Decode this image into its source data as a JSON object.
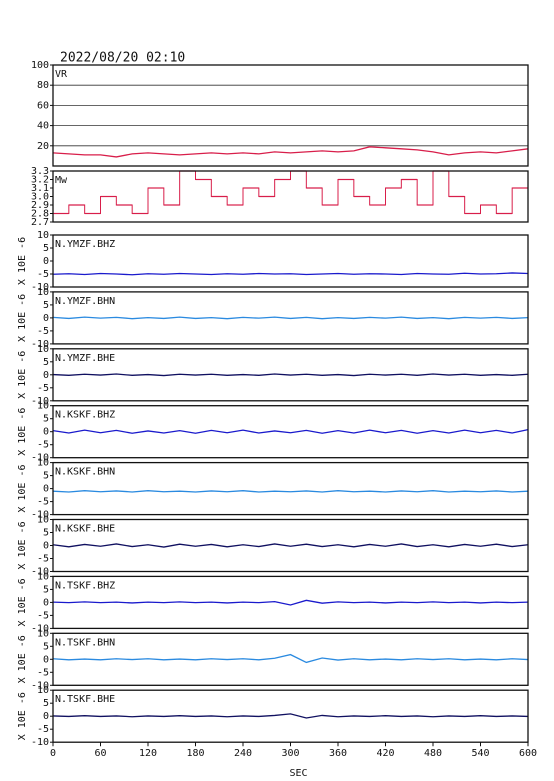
{
  "title": "2022/08/20 02:10",
  "chart_data": [
    {
      "type": "line",
      "title": "VR",
      "xlim": [
        0,
        600
      ],
      "ylim": [
        0,
        100
      ],
      "yticks": [
        20,
        40,
        60,
        80,
        100
      ],
      "grid": true,
      "x": [
        0,
        20,
        40,
        60,
        80,
        100,
        120,
        140,
        160,
        180,
        200,
        220,
        240,
        260,
        280,
        300,
        320,
        340,
        360,
        380,
        400,
        420,
        440,
        460,
        480,
        500,
        520,
        540,
        560,
        580,
        600
      ],
      "series": [
        {
          "color": "#d81e4a",
          "values": [
            13,
            12,
            11,
            11,
            9,
            12,
            13,
            12,
            11,
            12,
            13,
            12,
            13,
            12,
            14,
            13,
            14,
            15,
            14,
            15,
            19,
            18,
            17,
            16,
            14,
            11,
            13,
            14,
            13,
            15,
            17
          ]
        }
      ]
    },
    {
      "type": "step",
      "title": "Mw",
      "xlim": [
        0,
        600
      ],
      "ylim": [
        2.7,
        3.3
      ],
      "yticks": [
        2.7,
        2.8,
        2.9,
        {
          "value": 3,
          "label": "3.0"
        },
        3.1,
        3.2,
        3.3
      ],
      "x": [
        0,
        20,
        40,
        60,
        80,
        100,
        120,
        140,
        160,
        180,
        200,
        220,
        240,
        260,
        280,
        300,
        320,
        340,
        360,
        380,
        400,
        420,
        440,
        460,
        480,
        500,
        520,
        540,
        560,
        580
      ],
      "series": [
        {
          "color": "#d81e4a",
          "values": [
            2.8,
            2.9,
            2.8,
            3.0,
            2.9,
            2.8,
            3.1,
            2.9,
            3.3,
            3.2,
            3.0,
            2.9,
            3.1,
            3.0,
            3.2,
            3.3,
            3.1,
            2.9,
            3.2,
            3.0,
            2.9,
            3.1,
            3.2,
            2.9,
            3.3,
            3.0,
            2.8,
            2.9,
            2.8,
            3.1
          ]
        }
      ]
    },
    {
      "type": "line",
      "title": "N.YMZF.BHZ",
      "ylabel": "X 10E -6",
      "xlim": [
        0,
        600
      ],
      "ylim": [
        -10,
        10
      ],
      "yticks": [
        -10,
        -5,
        0,
        5,
        10
      ],
      "x": [
        0,
        20,
        40,
        60,
        80,
        100,
        120,
        140,
        160,
        180,
        200,
        220,
        240,
        260,
        280,
        300,
        320,
        340,
        360,
        380,
        400,
        420,
        440,
        460,
        480,
        500,
        520,
        540,
        560,
        580,
        600
      ],
      "series": [
        {
          "color": "#1a1acc",
          "values": [
            -5.1,
            -4.9,
            -5.2,
            -4.8,
            -5.0,
            -5.3,
            -4.9,
            -5.1,
            -4.8,
            -5.0,
            -5.2,
            -4.9,
            -5.1,
            -4.8,
            -5.0,
            -4.9,
            -5.2,
            -5.0,
            -4.8,
            -5.1,
            -4.9,
            -5.0,
            -5.2,
            -4.8,
            -5.0,
            -5.1,
            -4.7,
            -5.0,
            -4.9,
            -4.6,
            -4.8
          ]
        }
      ]
    },
    {
      "type": "line",
      "title": "N.YMZF.BHN",
      "ylabel": "X 10E -6",
      "xlim": [
        0,
        600
      ],
      "ylim": [
        -10,
        10
      ],
      "yticks": [
        -10,
        -5,
        0,
        5,
        10
      ],
      "x": [
        0,
        20,
        40,
        60,
        80,
        100,
        120,
        140,
        160,
        180,
        200,
        220,
        240,
        260,
        280,
        300,
        320,
        340,
        360,
        380,
        400,
        420,
        440,
        460,
        480,
        500,
        520,
        540,
        560,
        580,
        600
      ],
      "series": [
        {
          "color": "#2a8ae0",
          "values": [
            0.2,
            -0.2,
            0.3,
            -0.1,
            0.2,
            -0.3,
            0.1,
            -0.2,
            0.3,
            -0.2,
            0.1,
            -0.3,
            0.2,
            -0.1,
            0.3,
            -0.2,
            0.2,
            -0.3,
            0.1,
            -0.2,
            0.2,
            -0.1,
            0.3,
            -0.2,
            0.1,
            -0.3,
            0.2,
            -0.1,
            0.2,
            -0.2,
            0.1
          ]
        }
      ]
    },
    {
      "type": "line",
      "title": "N.YMZF.BHE",
      "ylabel": "X 10E -6",
      "xlim": [
        0,
        600
      ],
      "ylim": [
        -10,
        10
      ],
      "yticks": [
        -10,
        -5,
        0,
        5,
        10
      ],
      "x": [
        0,
        20,
        40,
        60,
        80,
        100,
        120,
        140,
        160,
        180,
        200,
        220,
        240,
        260,
        280,
        300,
        320,
        340,
        360,
        380,
        400,
        420,
        440,
        460,
        480,
        500,
        520,
        540,
        560,
        580,
        600
      ],
      "series": [
        {
          "color": "#101060",
          "values": [
            0.1,
            -0.2,
            0.2,
            -0.1,
            0.3,
            -0.2,
            0.1,
            -0.3,
            0.2,
            -0.1,
            0.2,
            -0.2,
            0.1,
            -0.2,
            0.3,
            -0.1,
            0.2,
            -0.2,
            0.1,
            -0.3,
            0.2,
            -0.1,
            0.2,
            -0.2,
            0.3,
            -0.1,
            0.2,
            -0.2,
            0.1,
            -0.2,
            0.2
          ]
        }
      ]
    },
    {
      "type": "line",
      "title": "N.KSKF.BHZ",
      "ylabel": "X 10E -6",
      "xlim": [
        0,
        600
      ],
      "ylim": [
        -10,
        10
      ],
      "yticks": [
        -10,
        -5,
        0,
        5,
        10
      ],
      "x": [
        0,
        20,
        40,
        60,
        80,
        100,
        120,
        140,
        160,
        180,
        200,
        220,
        240,
        260,
        280,
        300,
        320,
        340,
        360,
        380,
        400,
        420,
        440,
        460,
        480,
        500,
        520,
        540,
        560,
        580,
        600
      ],
      "series": [
        {
          "color": "#1a1acc",
          "values": [
            0.4,
            -0.5,
            0.6,
            -0.4,
            0.5,
            -0.6,
            0.3,
            -0.5,
            0.4,
            -0.6,
            0.5,
            -0.4,
            0.6,
            -0.5,
            0.3,
            -0.4,
            0.5,
            -0.6,
            0.4,
            -0.5,
            0.6,
            -0.4,
            0.5,
            -0.6,
            0.4,
            -0.5,
            0.6,
            -0.4,
            0.5,
            -0.5,
            0.8
          ]
        }
      ]
    },
    {
      "type": "line",
      "title": "N.KSKF.BHN",
      "ylabel": "X 10E -6",
      "xlim": [
        0,
        600
      ],
      "ylim": [
        -10,
        10
      ],
      "yticks": [
        -10,
        -5,
        0,
        5,
        10
      ],
      "x": [
        0,
        20,
        40,
        60,
        80,
        100,
        120,
        140,
        160,
        180,
        200,
        220,
        240,
        260,
        280,
        300,
        320,
        340,
        360,
        380,
        400,
        420,
        440,
        460,
        480,
        500,
        520,
        540,
        560,
        580,
        600
      ],
      "series": [
        {
          "color": "#2a8ae0",
          "values": [
            -1.0,
            -1.3,
            -0.8,
            -1.2,
            -0.9,
            -1.3,
            -0.8,
            -1.2,
            -1.0,
            -1.3,
            -0.9,
            -1.2,
            -0.8,
            -1.3,
            -1.0,
            -1.2,
            -0.9,
            -1.3,
            -0.8,
            -1.2,
            -1.0,
            -1.3,
            -0.9,
            -1.2,
            -0.8,
            -1.3,
            -1.0,
            -1.2,
            -0.9,
            -1.3,
            -1.0
          ]
        }
      ]
    },
    {
      "type": "line",
      "title": "N.KSKF.BHE",
      "ylabel": "X 10E -6",
      "xlim": [
        0,
        600
      ],
      "ylim": [
        -10,
        10
      ],
      "yticks": [
        -10,
        -5,
        0,
        5,
        10
      ],
      "x": [
        0,
        20,
        40,
        60,
        80,
        100,
        120,
        140,
        160,
        180,
        200,
        220,
        240,
        260,
        280,
        300,
        320,
        340,
        360,
        380,
        400,
        420,
        440,
        460,
        480,
        500,
        520,
        540,
        560,
        580,
        600
      ],
      "series": [
        {
          "color": "#101060",
          "values": [
            0.3,
            -0.5,
            0.4,
            -0.3,
            0.6,
            -0.4,
            0.3,
            -0.6,
            0.5,
            -0.3,
            0.4,
            -0.5,
            0.3,
            -0.4,
            0.6,
            -0.3,
            0.5,
            -0.4,
            0.3,
            -0.5,
            0.4,
            -0.3,
            0.6,
            -0.4,
            0.3,
            -0.5,
            0.4,
            -0.3,
            0.5,
            -0.4,
            0.3
          ]
        }
      ]
    },
    {
      "type": "line",
      "title": "N.TSKF.BHZ",
      "ylabel": "X 10E -6",
      "xlim": [
        0,
        600
      ],
      "ylim": [
        -10,
        10
      ],
      "yticks": [
        -10,
        -5,
        0,
        5,
        10
      ],
      "x": [
        0,
        20,
        40,
        60,
        80,
        100,
        120,
        140,
        160,
        180,
        200,
        220,
        240,
        260,
        280,
        300,
        320,
        340,
        360,
        380,
        400,
        420,
        440,
        460,
        480,
        500,
        520,
        540,
        560,
        580,
        600
      ],
      "series": [
        {
          "color": "#1a1acc",
          "values": [
            0.1,
            -0.1,
            0.2,
            -0.1,
            0.1,
            -0.2,
            0.1,
            -0.1,
            0.2,
            -0.1,
            0.1,
            -0.2,
            0.1,
            -0.1,
            0.3,
            -1.0,
            0.8,
            -0.3,
            0.2,
            -0.1,
            0.1,
            -0.2,
            0.1,
            -0.1,
            0.2,
            -0.1,
            0.1,
            -0.2,
            0.1,
            -0.1,
            0.1
          ]
        }
      ]
    },
    {
      "type": "line",
      "title": "N.TSKF.BHN",
      "ylabel": "X 10E -6",
      "xlim": [
        0,
        600
      ],
      "ylim": [
        -10,
        10
      ],
      "yticks": [
        -10,
        -5,
        0,
        5,
        10
      ],
      "x": [
        0,
        20,
        40,
        60,
        80,
        100,
        120,
        140,
        160,
        180,
        200,
        220,
        240,
        260,
        280,
        300,
        320,
        340,
        360,
        380,
        400,
        420,
        440,
        460,
        480,
        500,
        520,
        540,
        560,
        580,
        600
      ],
      "series": [
        {
          "color": "#2a8ae0",
          "values": [
            0.2,
            -0.2,
            0.1,
            -0.2,
            0.2,
            -0.1,
            0.2,
            -0.2,
            0.1,
            -0.2,
            0.2,
            -0.1,
            0.2,
            -0.2,
            0.4,
            1.8,
            -1.2,
            0.5,
            -0.3,
            0.2,
            -0.2,
            0.1,
            -0.2,
            0.2,
            -0.1,
            0.2,
            -0.2,
            0.1,
            -0.2,
            0.2,
            -0.1
          ]
        }
      ]
    },
    {
      "type": "line",
      "title": "N.TSKF.BHE",
      "ylabel": "X 10E -6",
      "xlim": [
        0,
        600
      ],
      "ylim": [
        -10,
        10
      ],
      "yticks": [
        -10,
        -5,
        0,
        5,
        10
      ],
      "x": [
        0,
        20,
        40,
        60,
        80,
        100,
        120,
        140,
        160,
        180,
        200,
        220,
        240,
        260,
        280,
        300,
        320,
        340,
        360,
        380,
        400,
        420,
        440,
        460,
        480,
        500,
        520,
        540,
        560,
        580,
        600
      ],
      "xticks": [
        0,
        60,
        120,
        180,
        240,
        300,
        360,
        420,
        480,
        540,
        600
      ],
      "xlabel": "SEC",
      "series": [
        {
          "color": "#101060",
          "values": [
            0.1,
            -0.1,
            0.2,
            -0.1,
            0.1,
            -0.2,
            0.1,
            -0.1,
            0.2,
            -0.1,
            0.1,
            -0.2,
            0.1,
            -0.1,
            0.3,
            0.9,
            -0.7,
            0.3,
            -0.2,
            0.1,
            -0.1,
            0.2,
            -0.1,
            0.1,
            -0.2,
            0.1,
            -0.1,
            0.2,
            -0.1,
            0.1,
            -0.1
          ]
        }
      ]
    }
  ]
}
